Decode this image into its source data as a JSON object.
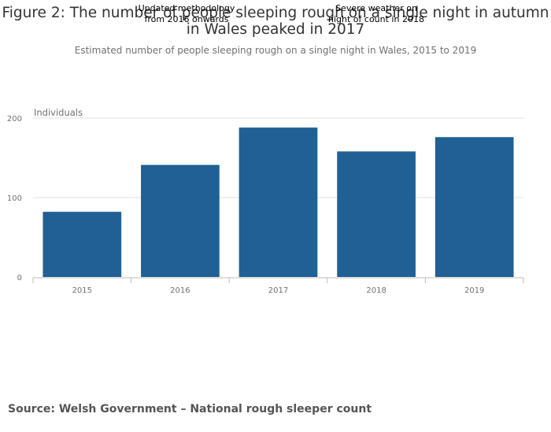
{
  "title_line1": "Figure 2: The number of people sleeping rough on a single night in autumn",
  "title_line2": "in Wales peaked in 2017",
  "subtitle": "Estimated number of people sleeping rough on a single night in Wales, 2015 to 2019",
  "annotations": [
    "Updated methodology\nfrom 2016 onwards",
    "Severe weather on\nnight of count in 2018"
  ],
  "source": "Source: Welsh Government – National rough sleeper count",
  "colors": {
    "bar": "#206095",
    "grid": "#e0e0e0",
    "axis": "#bdbdbd",
    "tick_text": "#707071"
  },
  "chart_data": {
    "type": "bar",
    "categories": [
      "2015",
      "2016",
      "2017",
      "2018",
      "2019"
    ],
    "values": [
      82,
      141,
      188,
      158,
      176
    ],
    "ylabel": "Individuals",
    "ylim": [
      0,
      200
    ],
    "yticks": [
      0,
      100,
      200
    ],
    "grid": true,
    "legend": "none"
  }
}
